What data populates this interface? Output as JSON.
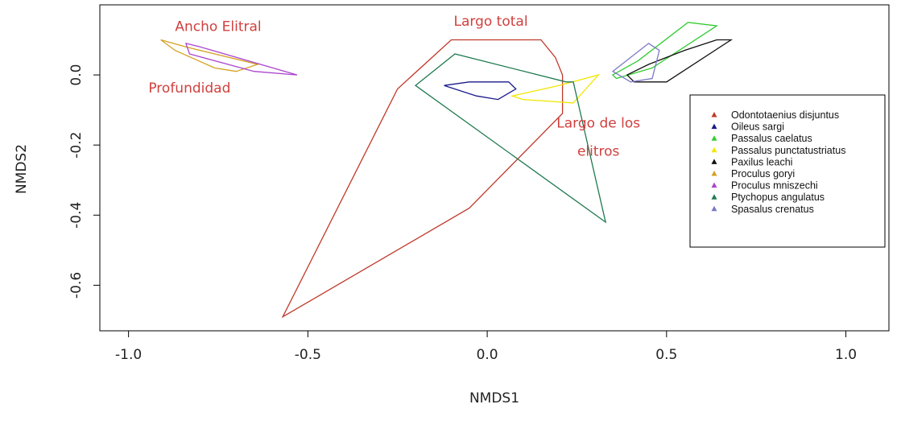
{
  "chart_data": {
    "type": "scatter",
    "title": "",
    "xlabel": "NMDS1",
    "ylabel": "NMDS2",
    "xlim": [
      -1.08,
      1.12
    ],
    "ylim": [
      -0.73,
      0.2
    ],
    "x_ticks": [
      {
        "value": -1.0,
        "label": "-1.0"
      },
      {
        "value": -0.5,
        "label": "-0.5"
      },
      {
        "value": 0.0,
        "label": "0.0"
      },
      {
        "value": 0.5,
        "label": "0.5"
      },
      {
        "value": 1.0,
        "label": "1.0"
      }
    ],
    "y_ticks": [
      {
        "value": 0.0,
        "label": "0.0"
      },
      {
        "value": -0.2,
        "label": "-0.2"
      },
      {
        "value": -0.4,
        "label": "-0.4"
      },
      {
        "value": -0.6,
        "label": "-0.6"
      }
    ],
    "grid": false,
    "legend_position": "right",
    "series": [
      {
        "name": "Odontotaenius disjuntus",
        "color": "#c0392b",
        "hull": [
          [
            -0.57,
            -0.69
          ],
          [
            -0.25,
            -0.04
          ],
          [
            -0.1,
            0.1
          ],
          [
            0.15,
            0.1
          ],
          [
            0.19,
            0.05
          ],
          [
            0.21,
            0.0
          ],
          [
            0.21,
            -0.11
          ],
          [
            -0.05,
            -0.38
          ]
        ]
      },
      {
        "name": "Oileus sargi",
        "color": "#1a1a8c",
        "hull": [
          [
            -0.12,
            -0.03
          ],
          [
            -0.05,
            -0.02
          ],
          [
            0.06,
            -0.02
          ],
          [
            0.08,
            -0.04
          ],
          [
            0.03,
            -0.07
          ],
          [
            -0.03,
            -0.06
          ]
        ]
      },
      {
        "name": "Passalus caelatus",
        "color": "#33cc33",
        "hull": [
          [
            0.35,
            0.0
          ],
          [
            0.42,
            0.04
          ],
          [
            0.56,
            0.15
          ],
          [
            0.64,
            0.14
          ],
          [
            0.46,
            0.02
          ],
          [
            0.36,
            -0.01
          ]
        ]
      },
      {
        "name": "Passalus punctatustriatus",
        "color": "#f2e600",
        "hull": [
          [
            0.07,
            -0.06
          ],
          [
            0.2,
            -0.03
          ],
          [
            0.31,
            0.0
          ],
          [
            0.24,
            -0.08
          ],
          [
            0.1,
            -0.07
          ]
        ]
      },
      {
        "name": "Paxilus leachi",
        "color": "#111111",
        "hull": [
          [
            0.39,
            0.0
          ],
          [
            0.45,
            0.03
          ],
          [
            0.55,
            0.07
          ],
          [
            0.64,
            0.1
          ],
          [
            0.68,
            0.1
          ],
          [
            0.5,
            -0.02
          ],
          [
            0.41,
            -0.02
          ]
        ]
      },
      {
        "name": "Proculus goryi",
        "color": "#d4a020",
        "hull": [
          [
            -0.91,
            0.1
          ],
          [
            -0.84,
            0.08
          ],
          [
            -0.64,
            0.03
          ],
          [
            -0.7,
            0.01
          ],
          [
            -0.76,
            0.02
          ],
          [
            -0.87,
            0.07
          ]
        ]
      },
      {
        "name": "Proculus mniszechi",
        "color": "#aa44cc",
        "hull": [
          [
            -0.84,
            0.09
          ],
          [
            -0.8,
            0.08
          ],
          [
            -0.53,
            0.0
          ],
          [
            -0.65,
            0.01
          ],
          [
            -0.83,
            0.06
          ]
        ]
      },
      {
        "name": "Ptychopus angulatus",
        "color": "#1f7a50",
        "hull": [
          [
            -0.2,
            -0.03
          ],
          [
            -0.09,
            0.06
          ],
          [
            0.22,
            -0.02
          ],
          [
            0.24,
            -0.02
          ],
          [
            0.33,
            -0.42
          ]
        ]
      },
      {
        "name": "Spasalus crenatus",
        "color": "#7a78c6",
        "hull": [
          [
            0.35,
            0.01
          ],
          [
            0.45,
            0.09
          ],
          [
            0.48,
            0.07
          ],
          [
            0.46,
            -0.01
          ],
          [
            0.4,
            -0.02
          ]
        ]
      }
    ],
    "annotations": [
      {
        "text": "Ancho Elitral",
        "x": -0.75,
        "y": 0.125
      },
      {
        "text": "Largo total",
        "x": 0.01,
        "y": 0.14
      },
      {
        "text": "Profundidad",
        "x": -0.83,
        "y": -0.05
      },
      {
        "text": "Largo de los",
        "x": 0.31,
        "y": -0.15
      },
      {
        "text": "elitros",
        "x": 0.31,
        "y": -0.23
      }
    ]
  }
}
